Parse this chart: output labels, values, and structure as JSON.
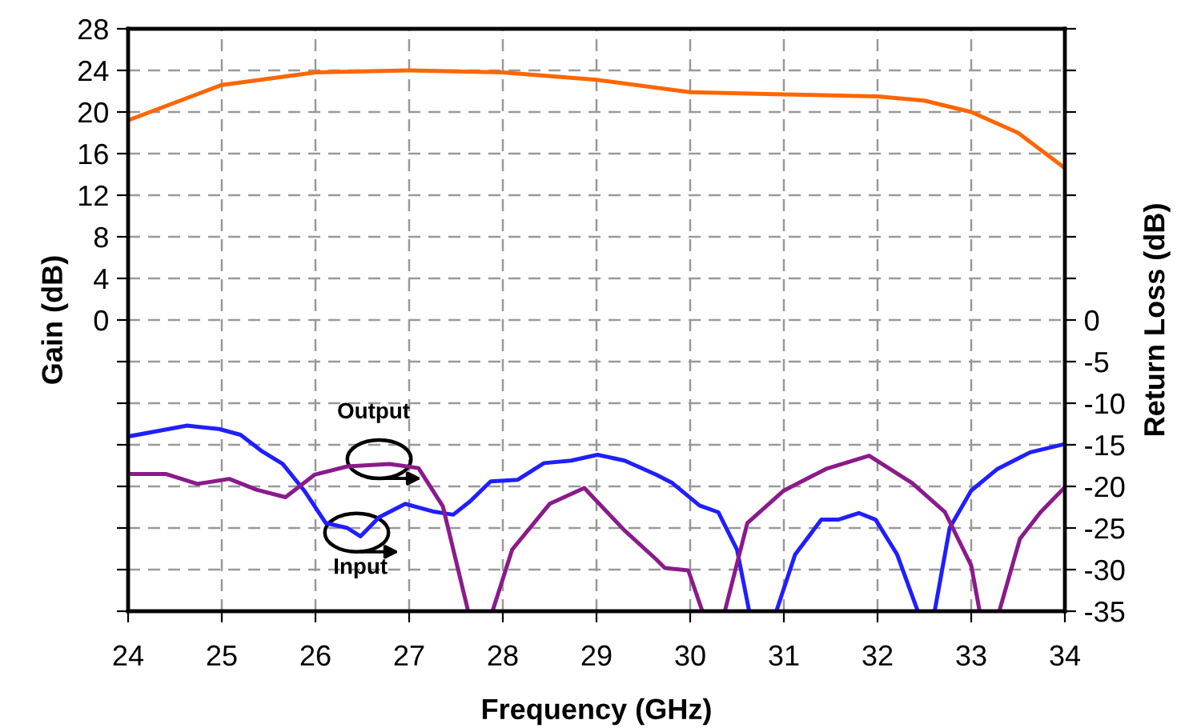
{
  "chart_data": {
    "type": "line",
    "xlabel": "Frequency (GHz)",
    "ylabel": "Gain (dB)",
    "y2label": "Return Loss (dB)",
    "xlim": [
      24,
      34
    ],
    "xticks": [
      24,
      25,
      26,
      27,
      28,
      29,
      30,
      31,
      32,
      33,
      34
    ],
    "ylim": [
      -28,
      28
    ],
    "yticks": [
      {
        "value": -28,
        "label": null
      },
      {
        "value": -24,
        "label": null
      },
      {
        "value": -20,
        "label": null
      },
      {
        "value": -16,
        "label": null
      },
      {
        "value": -12,
        "label": null
      },
      {
        "value": -8,
        "label": null
      },
      {
        "value": -4,
        "label": null
      },
      0,
      4,
      8,
      12,
      16,
      20,
      24,
      28
    ],
    "y2lim": [
      -35,
      35
    ],
    "y2ticks": [
      -35,
      -30,
      -25,
      -20,
      -15,
      -10,
      -5,
      0,
      {
        "value": 5,
        "label": null
      },
      {
        "value": 10,
        "label": null
      },
      {
        "value": 15,
        "label": null
      },
      {
        "value": 20,
        "label": null
      },
      {
        "value": 25,
        "label": null
      },
      {
        "value": 30,
        "label": null
      },
      {
        "value": 35,
        "label": null
      }
    ],
    "grid": true,
    "line_style": "solid",
    "marker": "none",
    "series": [
      {
        "color": "#ff6600",
        "x": [
          24,
          25,
          26,
          27,
          28,
          29,
          30,
          31,
          32,
          32.5,
          33,
          33.5,
          34
        ],
        "values": [
          19.2,
          22.6,
          23.8,
          24.0,
          23.8,
          23.1,
          21.9,
          21.7,
          21.5,
          21.1,
          20.0,
          18.0,
          14.6
        ]
      },
      {
        "color": "#1f1fff",
        "axis": "y2",
        "x": [
          24,
          24.63,
          24.97,
          25.2,
          25.42,
          25.65,
          25.88,
          26.11,
          26.34,
          26.48,
          26.68,
          26.96,
          27.25,
          27.47,
          27.65,
          27.87,
          28.16,
          28.44,
          28.73,
          29.01,
          29.3,
          29.64,
          29.81,
          30.1,
          30.3,
          30.5,
          30.63,
          30.78,
          30.92,
          31.12,
          31.4,
          31.58,
          31.8,
          31.98,
          32.21,
          32.43,
          32.52,
          32.61,
          32.77,
          33.0,
          33.28,
          33.63,
          34.0
        ],
        "values": [
          -14.0,
          -12.7,
          -13.1,
          -13.8,
          -15.7,
          -17.3,
          -20.5,
          -24.4,
          -25.0,
          -26.0,
          -23.7,
          -22.1,
          -23.0,
          -23.4,
          -21.8,
          -19.4,
          -19.2,
          -17.2,
          -16.9,
          -16.2,
          -16.9,
          -18.6,
          -19.6,
          -22.3,
          -23.1,
          -27.6,
          -35,
          null,
          -35,
          -28.2,
          -24.0,
          -24.0,
          -23.2,
          -24.0,
          -28.2,
          -35,
          null,
          -35,
          -25.0,
          -20.5,
          -17.9,
          -15.9,
          -14.9
        ]
      },
      {
        "color": "#8b1a8b",
        "axis": "y2",
        "x": [
          24,
          24.4,
          24.74,
          25.08,
          25.37,
          25.68,
          25.99,
          26.34,
          26.79,
          27.1,
          27.36,
          27.63,
          27.76,
          27.89,
          28.1,
          28.5,
          28.87,
          29.3,
          29.64,
          29.73,
          29.98,
          30.13,
          30.25,
          30.37,
          30.61,
          31.0,
          31.45,
          31.91,
          32.37,
          32.72,
          33.0,
          33.09,
          33.2,
          33.3,
          33.52,
          33.74,
          34.0
        ],
        "values": [
          -18.5,
          -18.5,
          -19.7,
          -19.1,
          -20.4,
          -21.3,
          -18.6,
          -17.6,
          -17.3,
          -17.8,
          -22.4,
          -35,
          null,
          -35,
          -27.6,
          -22.1,
          -20.2,
          -25.3,
          -28.8,
          -29.8,
          -30.1,
          -35,
          null,
          -35,
          -24.4,
          -20.5,
          -17.9,
          -16.3,
          -19.6,
          -23.1,
          -29.5,
          -35,
          null,
          -35,
          -26.3,
          -23.1,
          -20.1
        ]
      }
    ],
    "annotations": [
      "Output",
      "Input"
    ]
  }
}
